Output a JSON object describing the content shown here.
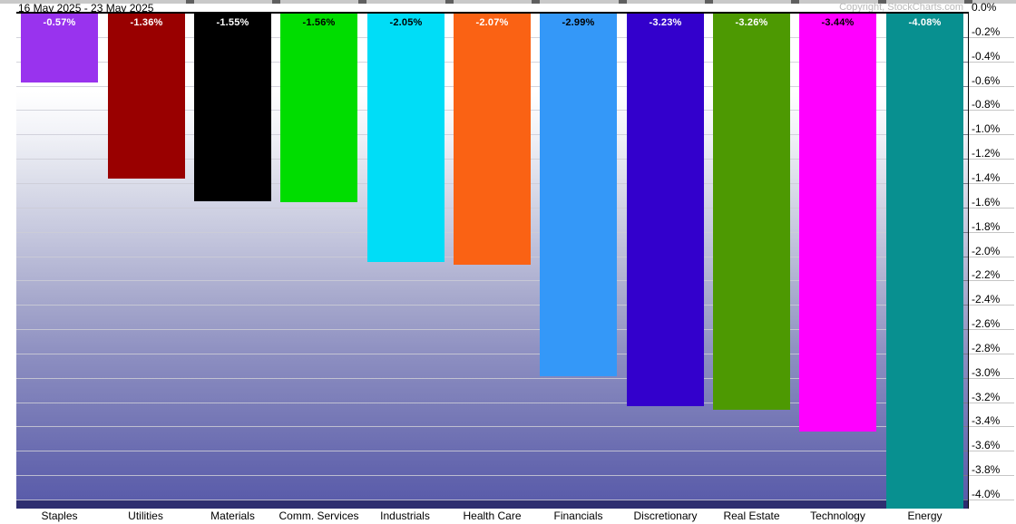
{
  "header": {
    "date_range": "16 May 2025 - 23 May 2025",
    "copyright": "Copyright, StockCharts.com"
  },
  "chart_data": {
    "type": "bar",
    "title": "16 May 2025 - 23 May 2025",
    "xlabel": "",
    "ylabel": "",
    "ylim": [
      -4.08,
      0
    ],
    "ytick_step": 0.2,
    "grid": true,
    "legend_position": "none",
    "categories": [
      "Staples",
      "Utilities",
      "Materials",
      "Comm. Services",
      "Industrials",
      "Health Care",
      "Financials",
      "Discretionary",
      "Real Estate",
      "Technology",
      "Energy"
    ],
    "values": [
      -0.57,
      -1.36,
      -1.55,
      -1.56,
      -2.05,
      -2.07,
      -2.99,
      -3.23,
      -3.26,
      -3.44,
      -4.08
    ],
    "value_labels": [
      "-0.57%",
      "-1.36%",
      "-1.55%",
      "-1.56%",
      "-2.05%",
      "-2.07%",
      "-2.99%",
      "-3.23%",
      "-3.26%",
      "-3.44%",
      "-4.08%"
    ],
    "bar_colors": [
      "#9933ee",
      "#990000",
      "#000000",
      "#00dd00",
      "#00ddf7",
      "#fa6214",
      "#3498f8",
      "#3300cc",
      "#4d9902",
      "#ff00ff",
      "#089090"
    ],
    "value_label_colors": [
      "#ffffff",
      "#ffffff",
      "#ffffff",
      "#000000",
      "#000000",
      "#ffffff",
      "#000000",
      "#ffffff",
      "#ffffff",
      "#000000",
      "#ffffff"
    ],
    "ytick_labels": [
      "0.0%",
      "-0.2%",
      "-0.4%",
      "-0.6%",
      "-0.8%",
      "-1.0%",
      "-1.2%",
      "-1.4%",
      "-1.6%",
      "-1.8%",
      "-2.0%",
      "-2.2%",
      "-2.4%",
      "-2.6%",
      "-2.8%",
      "-3.0%",
      "-3.2%",
      "-3.4%",
      "-3.6%",
      "-3.8%",
      "-4.0%"
    ]
  },
  "colors": {
    "plot_gradient_top": "#ffffff",
    "plot_gradient_bottom": "#5a5caa",
    "plot_bottom_band": "#2e2e70",
    "gridline": "#cdcdd6",
    "axis": "#000000",
    "copyright_text": "#b9b9b9",
    "top_strip": "#c9c9c9"
  }
}
